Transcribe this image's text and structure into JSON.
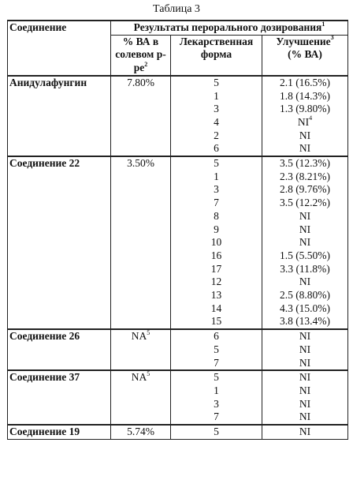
{
  "caption": "Таблица 3",
  "headers": {
    "compound": "Соединение",
    "results_main": "Результаты перорального дозирования",
    "results_sup": "1",
    "ba": "% ВА в солевом р-ре",
    "ba_sup": "2",
    "form": "Лекарственная форма",
    "improvement_main": "Улучшение",
    "improvement_sup": "3",
    "improvement_sub": "(% ВА)"
  },
  "groups": [
    {
      "compound": "Анидулафунгин",
      "ba": "7.80%",
      "rows": [
        {
          "form": "5",
          "improvement": "2.1 (16.5%)"
        },
        {
          "form": "1",
          "improvement": "1.8 (14.3%)"
        },
        {
          "form": "3",
          "improvement": "1.3 (9.80%)"
        },
        {
          "form": "4",
          "improvement": "NI",
          "improvement_sup": "4"
        },
        {
          "form": "2",
          "improvement": "NI"
        },
        {
          "form": "6",
          "improvement": "NI"
        }
      ]
    },
    {
      "compound": "Соединение 22",
      "ba": "3.50%",
      "rows": [
        {
          "form": "5",
          "improvement": "3.5 (12.3%)"
        },
        {
          "form": "1",
          "improvement": "2.3 (8.21%)"
        },
        {
          "form": "3",
          "improvement": "2.8 (9.76%)"
        },
        {
          "form": "7",
          "improvement": "3.5 (12.2%)"
        },
        {
          "form": "8",
          "improvement": "NI"
        },
        {
          "form": "9",
          "improvement": "NI"
        },
        {
          "form": "10",
          "improvement": "NI"
        },
        {
          "form": "16",
          "improvement": "1.5 (5.50%)"
        },
        {
          "form": "17",
          "improvement": "3.3 (11.8%)"
        },
        {
          "form": "12",
          "improvement": "NI"
        },
        {
          "form": "13",
          "improvement": "2.5 (8.80%)"
        },
        {
          "form": "14",
          "improvement": "4.3 (15.0%)"
        },
        {
          "form": "15",
          "improvement": "3.8 (13.4%)"
        }
      ]
    },
    {
      "compound": "Соединение 26",
      "ba": "NA",
      "ba_sup": "5",
      "rows": [
        {
          "form": "6",
          "improvement": "NI"
        },
        {
          "form": "5",
          "improvement": "NI"
        },
        {
          "form": "7",
          "improvement": "NI"
        }
      ]
    },
    {
      "compound": "Соединение 37",
      "ba": "NA",
      "ba_sup": "5",
      "rows": [
        {
          "form": "5",
          "improvement": "NI"
        },
        {
          "form": "1",
          "improvement": "NI"
        },
        {
          "form": "3",
          "improvement": "NI"
        },
        {
          "form": "7",
          "improvement": "NI"
        }
      ]
    },
    {
      "compound": "Соединение 19",
      "ba": "5.74%",
      "rows": [
        {
          "form": "5",
          "improvement": "NI"
        }
      ]
    }
  ]
}
